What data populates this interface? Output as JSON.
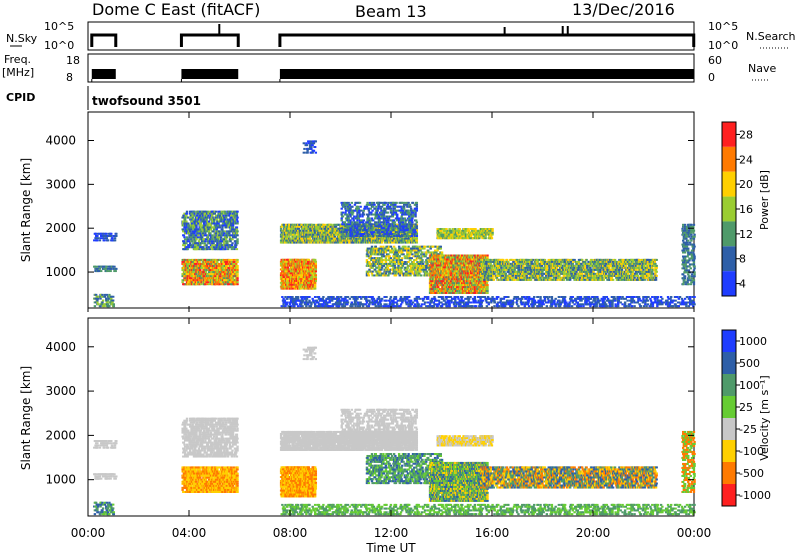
{
  "header": {
    "title": "Dome C East (fitACF)",
    "beam": "Beam 13",
    "date": "13/Dec/2016"
  },
  "panels": {
    "nsky": {
      "label": "N.Sky",
      "ticks_left": [
        "10^5",
        "10^0"
      ],
      "ticks_right": [
        "10^5",
        "10^0"
      ],
      "right_label": "N.Search"
    },
    "freq": {
      "label_line1": "Freq.",
      "label_line2": "[MHz]",
      "ticks_left": [
        "18",
        "8"
      ],
      "ticks_right": [
        "60",
        "0"
      ],
      "right_label": "Nave"
    },
    "cpid": {
      "label": "CPID",
      "value": "twofsound 3501"
    }
  },
  "chart_data": [
    {
      "type": "heatmap",
      "title": "",
      "ylabel": "Slant Range [km]",
      "xlabel": "",
      "yticks": [
        "4000",
        "3000",
        "2000",
        "1000"
      ],
      "ylim": [
        180,
        4650
      ],
      "xlim_hours": [
        0,
        24
      ],
      "colorbar": {
        "label": "Power [dB]",
        "ticks": [
          "28",
          "24",
          "20",
          "16",
          "12",
          "8",
          "4"
        ],
        "colors": [
          "#ff2020",
          "#ff7a00",
          "#ffd000",
          "#9acd32",
          "#4f9a6a",
          "#2e5fa8",
          "#1f3dff"
        ]
      }
    },
    {
      "type": "heatmap",
      "title": "",
      "ylabel": "Slant Range [km]",
      "xlabel": "Time UT",
      "yticks": [
        "4000",
        "3000",
        "2000",
        "1000"
      ],
      "ylim": [
        180,
        4650
      ],
      "xlim_hours": [
        0,
        24
      ],
      "xticks": [
        "00:00",
        "04:00",
        "08:00",
        "12:00",
        "16:00",
        "20:00",
        "00:00"
      ],
      "colorbar": {
        "label": "Velocity [m s⁻¹]",
        "ticks": [
          "1000",
          "500",
          "100",
          "25",
          "-25",
          "-100",
          "-500",
          "-1000"
        ],
        "colors": [
          "#1f3dff",
          "#2e5fa8",
          "#4f9a6a",
          "#66cc33",
          "#c8c8c8",
          "#ffd000",
          "#ff7a00",
          "#ff2020"
        ]
      }
    }
  ]
}
